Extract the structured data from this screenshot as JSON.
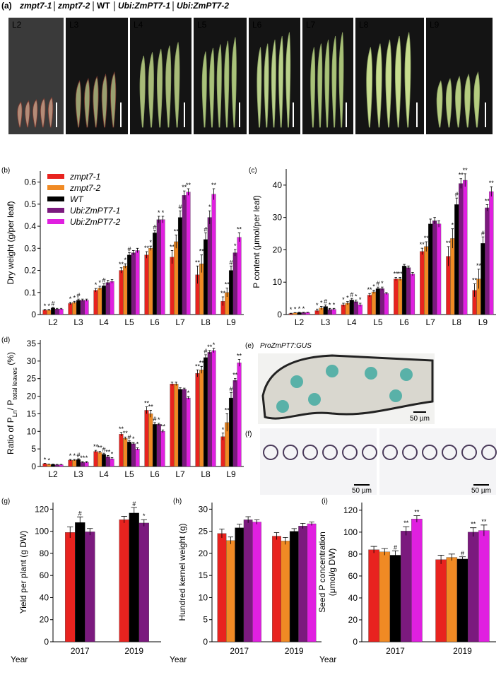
{
  "figure_a": {
    "panel": "(a)",
    "genotypes": [
      "zmpt7-1",
      "zmpt7-2",
      "WT",
      "Ubi:ZmPT7-1",
      "Ubi:ZmPT7-2"
    ],
    "leaves": [
      "L2",
      "L3",
      "L4",
      "L5",
      "L6",
      "L7",
      "L8",
      "L9"
    ]
  },
  "figure_e": {
    "panel": "(e)",
    "title": "ProZmPT7:GUS",
    "scale": "50 µm"
  },
  "figure_f": {
    "panel": "(f)",
    "scales": [
      "50 µm",
      "50 µm"
    ]
  },
  "chart_data": [
    {
      "type": "bar",
      "panel": "(b)",
      "ylabel": [
        "Dry weight (g/per leaf)"
      ],
      "legend": "upper left",
      "categories": [
        "L2",
        "L3",
        "L4",
        "L5",
        "L6",
        "L7",
        "L8",
        "L9"
      ],
      "ylim": [
        0,
        0.65
      ],
      "yticks": [
        0,
        0.1,
        0.2,
        0.3,
        0.4,
        0.5,
        0.6
      ],
      "series": [
        {
          "name": "zmpt7-1",
          "color": "#e8231f",
          "values": [
            0.02,
            0.05,
            0.11,
            0.2,
            0.27,
            0.26,
            0.18,
            0.06
          ],
          "errors": [
            0.003,
            0.005,
            0.008,
            0.012,
            0.015,
            0.03,
            0.04,
            0.02
          ],
          "sig": [
            "*",
            "*",
            "*",
            "**",
            "**",
            "**",
            "**",
            "**"
          ]
        },
        {
          "name": "zmpt7-2",
          "color": "#f08a24",
          "values": [
            0.02,
            0.055,
            0.12,
            0.22,
            0.3,
            0.33,
            0.23,
            0.1
          ],
          "errors": [
            0.003,
            0.005,
            0.008,
            0.01,
            0.01,
            0.03,
            0.04,
            0.02
          ],
          "sig": [
            "*",
            "*",
            "*",
            "*",
            "*",
            "**",
            "**",
            "**"
          ]
        },
        {
          "name": "WT",
          "color": "#000000",
          "values": [
            0.03,
            0.065,
            0.13,
            0.27,
            0.37,
            0.44,
            0.34,
            0.2
          ],
          "errors": [
            0.003,
            0.005,
            0.01,
            0.01,
            0.01,
            0.03,
            0.03,
            0.02
          ],
          "sig": [
            "#",
            "#",
            "#",
            "#",
            "#",
            "#",
            "#",
            "#"
          ]
        },
        {
          "name": "Ubi:ZmPT7-1",
          "color": "#7b1a7e",
          "values": [
            0.025,
            0.065,
            0.145,
            0.28,
            0.43,
            0.54,
            0.44,
            0.28
          ],
          "errors": [
            0.003,
            0.005,
            0.01,
            0.01,
            0.015,
            0.02,
            0.03,
            0.015
          ],
          "sig": [
            null,
            null,
            null,
            null,
            "*",
            "**",
            "*",
            "*"
          ]
        },
        {
          "name": "Ubi:ZmPT7-2",
          "color": "#e020e0",
          "values": [
            0.025,
            0.065,
            0.15,
            0.29,
            0.43,
            0.555,
            0.545,
            0.35
          ],
          "errors": [
            0.003,
            0.005,
            0.008,
            0.01,
            0.015,
            0.015,
            0.025,
            0.02
          ],
          "sig": [
            null,
            null,
            null,
            null,
            "*",
            "**",
            "**",
            "**"
          ]
        }
      ]
    },
    {
      "type": "bar",
      "panel": "(c)",
      "ylabel": [
        "P content (μmol/per leaf)"
      ],
      "categories": [
        "L2",
        "L3",
        "L4",
        "L5",
        "L6",
        "L7",
        "L8",
        "L9"
      ],
      "ylim": [
        0,
        45
      ],
      "yticks": [
        0,
        10,
        20,
        30,
        40
      ],
      "series": [
        {
          "color": "#e8231f",
          "values": [
            0.3,
            1.2,
            3,
            6,
            11,
            19.5,
            18,
            7.5
          ],
          "errors": [
            0.1,
            0.5,
            0.5,
            0.5,
            0.5,
            1,
            3,
            2
          ],
          "sig": [
            "*",
            "*",
            "*",
            "**",
            "**",
            "**",
            "**",
            "**"
          ]
        },
        {
          "color": "#f08a24",
          "values": [
            0.5,
            2,
            3.5,
            7,
            11,
            21,
            23.5,
            11
          ],
          "errors": [
            0.1,
            0.5,
            0.5,
            0.5,
            0.5,
            1.5,
            3,
            3
          ],
          "sig": [
            "*",
            "*",
            "*",
            "*",
            "**",
            "**",
            "*",
            "**"
          ]
        },
        {
          "color": "#000000",
          "values": [
            0.6,
            2.5,
            4.5,
            8,
            15,
            28,
            34,
            22
          ],
          "errors": [
            0.1,
            0.5,
            0.5,
            0.5,
            0.5,
            1.5,
            2,
            2
          ],
          "sig": [
            "*",
            "#",
            "#",
            "#",
            null,
            null,
            "#",
            "#"
          ]
        },
        {
          "color": "#7b1a7e",
          "values": [
            0.6,
            1.6,
            4,
            8,
            14.5,
            29,
            40.5,
            33
          ],
          "errors": [
            0.1,
            0.3,
            0.5,
            0.5,
            0.5,
            1,
            1.5,
            1
          ],
          "sig": [
            "*",
            "*",
            "*",
            "*",
            null,
            null,
            "**",
            "**"
          ]
        },
        {
          "color": "#e020e0",
          "values": [
            0.6,
            1.6,
            3,
            6.5,
            12.5,
            28,
            41.5,
            38
          ],
          "errors": [
            0.1,
            0.3,
            0.5,
            0.3,
            0.5,
            1,
            2,
            1.5
          ],
          "sig": [
            null,
            "*",
            "*",
            null,
            null,
            null,
            "**",
            "**"
          ]
        }
      ]
    },
    {
      "type": "bar",
      "panel": "(d)",
      "ylabel_parts": [
        {
          "text": "Ratio of P"
        },
        {
          "text": "Ln",
          "sub": true
        },
        {
          "text": "/ P"
        },
        {
          "text": "total leaves",
          "sub": true
        },
        {
          "text": " (%)"
        }
      ],
      "categories": [
        "L2",
        "L3",
        "L4",
        "L5",
        "L6",
        "L7",
        "L8",
        "L9"
      ],
      "ylim": [
        0,
        36
      ],
      "yticks": [
        0,
        5,
        10,
        15,
        20,
        25,
        30,
        35
      ],
      "series": [
        {
          "color": "#e8231f",
          "values": [
            0.8,
            1.8,
            4.3,
            9.2,
            16,
            23.5,
            26.5,
            8.5
          ],
          "errors": [
            0.1,
            0.2,
            0.3,
            0.5,
            1,
            0.5,
            1,
            1
          ],
          "sig": [
            "*",
            "*",
            "**",
            "**",
            "**",
            null,
            "**",
            "*"
          ]
        },
        {
          "color": "#f08a24",
          "values": [
            0.6,
            1.8,
            4,
            8,
            15,
            23.5,
            27.5,
            12.5
          ],
          "errors": [
            0.1,
            0.2,
            0.3,
            0.4,
            1,
            0.5,
            1,
            2.5
          ],
          "sig": [
            "*",
            "*",
            "**",
            "**",
            "**",
            null,
            "**",
            "**"
          ]
        },
        {
          "color": "#000000",
          "values": [
            0.6,
            2,
            3.5,
            7,
            12,
            22,
            31,
            19.5
          ],
          "errors": [
            0.1,
            0.2,
            0.3,
            0.3,
            0.5,
            0.4,
            0.8,
            1.5
          ],
          "sig": [
            null,
            "#",
            "#",
            "#",
            "#",
            null,
            "#",
            "#"
          ]
        },
        {
          "color": "#7b1a7e",
          "values": [
            0.5,
            1.2,
            2.8,
            6.5,
            12,
            22,
            32.5,
            24.5
          ],
          "errors": [
            0.1,
            0.2,
            0.3,
            0.3,
            0.3,
            0.3,
            0.5,
            0.5
          ],
          "sig": [
            null,
            "**",
            "**",
            "*",
            "*",
            null,
            "**",
            "**"
          ]
        },
        {
          "color": "#e020e0",
          "values": [
            0.5,
            1.2,
            2.2,
            5,
            10,
            19.5,
            33,
            29.5
          ],
          "errors": [
            0.1,
            0.2,
            0.3,
            0.3,
            0.4,
            0.4,
            0.6,
            1
          ],
          "sig": [
            null,
            "*",
            "*",
            "*",
            "**",
            "*",
            "*",
            "**"
          ]
        }
      ]
    },
    {
      "type": "bar",
      "panel": "(g)",
      "ylabel": [
        "Yield per plant (g DW)"
      ],
      "xlabel": "Year",
      "categories": [
        "2017",
        "2019"
      ],
      "ylim": [
        0,
        126
      ],
      "yticks": [
        0,
        20,
        40,
        60,
        80,
        100,
        120
      ],
      "series": [
        {
          "color": "#e8231f",
          "values": [
            99,
            110.5
          ],
          "errors": [
            5,
            3
          ],
          "sig": [
            null,
            null
          ]
        },
        {
          "color": "#000000",
          "values": [
            108,
            116.5
          ],
          "errors": [
            5,
            5
          ],
          "sig": [
            "#",
            "#"
          ]
        },
        {
          "color": "#7b1a7e",
          "values": [
            99.5,
            107.5
          ],
          "errors": [
            3,
            3
          ],
          "sig": [
            null,
            "*"
          ]
        }
      ]
    },
    {
      "type": "bar",
      "panel": "(h)",
      "ylabel": [
        "Hundred kernel weight (g)"
      ],
      "xlabel": "Year",
      "categories": [
        "2017",
        "2019"
      ],
      "ylim": [
        0,
        31.5
      ],
      "yticks": [
        0,
        5,
        10,
        15,
        20,
        25,
        30
      ],
      "series": [
        {
          "color": "#e8231f",
          "values": [
            24.5,
            23.9
          ],
          "errors": [
            1,
            0.8
          ],
          "sig": [
            null,
            null
          ]
        },
        {
          "color": "#f08a24",
          "values": [
            22.9,
            22.8
          ],
          "errors": [
            0.8,
            0.8
          ],
          "sig": [
            null,
            null
          ]
        },
        {
          "color": "#000000",
          "values": [
            25.8,
            25
          ],
          "errors": [
            0.8,
            0.6
          ],
          "sig": [
            null,
            null
          ]
        },
        {
          "color": "#7b1a7e",
          "values": [
            27.6,
            26.2
          ],
          "errors": [
            0.7,
            0.6
          ],
          "sig": [
            null,
            null
          ]
        },
        {
          "color": "#e020e0",
          "values": [
            27.1,
            26.7
          ],
          "errors": [
            0.5,
            0.4
          ],
          "sig": [
            null,
            null
          ]
        }
      ]
    },
    {
      "type": "bar",
      "panel": "(i)",
      "ylabel": [
        "Seed P concentration",
        "(μmol/g DW)"
      ],
      "xlabel": "Year",
      "categories": [
        "2017",
        "2019"
      ],
      "ylim": [
        0,
        127
      ],
      "yticks": [
        0,
        20,
        40,
        60,
        80,
        100,
        120
      ],
      "series": [
        {
          "color": "#e8231f",
          "values": [
            84,
            75
          ],
          "errors": [
            3,
            4
          ],
          "sig": [
            null,
            null
          ]
        },
        {
          "color": "#f08a24",
          "values": [
            82,
            77
          ],
          "errors": [
            3,
            3
          ],
          "sig": [
            null,
            null
          ]
        },
        {
          "color": "#000000",
          "values": [
            79,
            75.5
          ],
          "errors": [
            4,
            2
          ],
          "sig": [
            "#",
            "#"
          ]
        },
        {
          "color": "#7b1a7e",
          "values": [
            101,
            100
          ],
          "errors": [
            4,
            4
          ],
          "sig": [
            "**",
            "**"
          ]
        },
        {
          "color": "#e020e0",
          "values": [
            112,
            101.5
          ],
          "errors": [
            3,
            5
          ],
          "sig": [
            "**",
            "**"
          ]
        }
      ]
    }
  ]
}
